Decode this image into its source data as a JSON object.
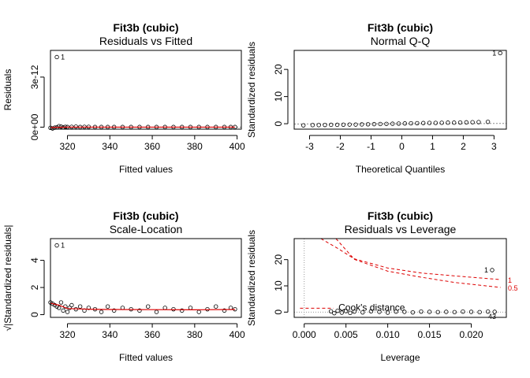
{
  "chart_data": [
    {
      "type": "scatter",
      "title": "Fit3b (cubic)",
      "subtitle": "Residuals vs Fitted",
      "xlabel": "Fitted values",
      "ylabel": "Residuals",
      "xlim": [
        312,
        402
      ],
      "ylim": [
        -1.2e-13,
        4.6e-12
      ],
      "xticks": [
        320,
        340,
        360,
        380,
        400
      ],
      "xtick_labels": [
        "320",
        "340",
        "360",
        "380",
        "400"
      ],
      "yticks": [
        0,
        3e-12
      ],
      "ytick_labels": [
        "0e+00",
        "3e-12"
      ],
      "reference_line": 0,
      "points_x": [
        312,
        313,
        314,
        315,
        316,
        317,
        318,
        319,
        320,
        322,
        324,
        326,
        328,
        330,
        333,
        336,
        339,
        342,
        346,
        350,
        354,
        358,
        362,
        366,
        370,
        374,
        378,
        382,
        386,
        390,
        394,
        397,
        399
      ],
      "points_y": [
        -4e-14,
        -8e-14,
        -3e-14,
        -1e-14,
        6e-14,
        3e-14,
        -2e-14,
        2e-14,
        1e-14,
        2e-14,
        3e-14,
        1e-14,
        2e-14,
        2e-14,
        1e-14,
        1e-14,
        1e-14,
        1e-14,
        1e-14,
        1e-14,
        1e-14,
        1e-14,
        1e-14,
        1e-14,
        1e-14,
        1e-14,
        1e-14,
        1e-14,
        1e-14,
        1e-14,
        1e-14,
        1e-14,
        1e-14
      ],
      "outlier": {
        "x": 315,
        "y": 4.2e-12,
        "label": "1"
      },
      "smooth_line": {
        "color": "#dd0000",
        "x": [
          312,
          320,
          340,
          360,
          380,
          399
        ],
        "y": [
          -2e-14,
          0,
          0,
          0,
          0,
          0
        ]
      }
    },
    {
      "type": "scatter",
      "title": "Fit3b (cubic)",
      "subtitle": "Normal Q-Q",
      "xlabel": "Theoretical Quantiles",
      "ylabel": "Standardized residuals",
      "xlim": [
        -3.5,
        3.4
      ],
      "ylim": [
        -2,
        27
      ],
      "xticks": [
        -3,
        -2,
        -1,
        0,
        1,
        2,
        3
      ],
      "xtick_labels": [
        "-3",
        "-2",
        "-1",
        "0",
        "1",
        "2",
        "3"
      ],
      "yticks": [
        0,
        10,
        20
      ],
      "ytick_labels": [
        "0",
        "10",
        "20"
      ],
      "reference_line": {
        "intercept": 0,
        "slope": 0.03
      },
      "points_x": [
        -3.2,
        -2.9,
        -2.7,
        -2.5,
        -2.3,
        -2.1,
        -1.9,
        -1.7,
        -1.5,
        -1.3,
        -1.1,
        -0.9,
        -0.7,
        -0.5,
        -0.3,
        -0.1,
        0.1,
        0.3,
        0.5,
        0.7,
        0.9,
        1.1,
        1.3,
        1.5,
        1.7,
        1.9,
        2.1,
        2.3,
        2.5,
        2.8
      ],
      "points_y": [
        -0.6,
        -0.5,
        -0.5,
        -0.45,
        -0.4,
        -0.4,
        -0.35,
        -0.3,
        -0.3,
        -0.25,
        -0.2,
        -0.15,
        -0.1,
        -0.05,
        0,
        0.05,
        0.1,
        0.15,
        0.2,
        0.25,
        0.3,
        0.3,
        0.35,
        0.4,
        0.4,
        0.45,
        0.5,
        0.55,
        0.6,
        0.7
      ],
      "outlier": {
        "x": 3.2,
        "y": 26,
        "label": "1"
      }
    },
    {
      "type": "scatter",
      "title": "Fit3b (cubic)",
      "subtitle": "Scale-Location",
      "xlabel": "Fitted values",
      "ylabel": "√|Standardized residuals|",
      "xlim": [
        312,
        402
      ],
      "ylim": [
        -0.2,
        5.6
      ],
      "xticks": [
        320,
        340,
        360,
        380,
        400
      ],
      "xtick_labels": [
        "320",
        "340",
        "360",
        "380",
        "400"
      ],
      "yticks": [
        0,
        2,
        4
      ],
      "ytick_labels": [
        "0",
        "2",
        "4"
      ],
      "points_x": [
        312,
        313,
        314,
        315,
        316,
        317,
        318,
        319,
        320,
        321,
        322,
        324,
        326,
        328,
        330,
        333,
        336,
        339,
        342,
        346,
        350,
        354,
        358,
        362,
        366,
        370,
        374,
        378,
        382,
        386,
        390,
        394,
        397,
        399
      ],
      "points_y": [
        0.9,
        0.8,
        0.7,
        0.6,
        0.5,
        0.9,
        0.3,
        0.6,
        0.2,
        0.5,
        0.7,
        0.4,
        0.6,
        0.3,
        0.5,
        0.4,
        0.2,
        0.6,
        0.3,
        0.5,
        0.4,
        0.3,
        0.6,
        0.2,
        0.5,
        0.4,
        0.3,
        0.5,
        0.2,
        0.4,
        0.6,
        0.3,
        0.5,
        0.4
      ],
      "outlier": {
        "x": 315,
        "y": 5.1,
        "label": "1"
      },
      "smooth_line": {
        "color": "#dd0000",
        "x": [
          312,
          316,
          320,
          330,
          340,
          360,
          380,
          399
        ],
        "y": [
          0.85,
          0.7,
          0.45,
          0.4,
          0.38,
          0.37,
          0.36,
          0.38
        ]
      }
    },
    {
      "type": "scatter",
      "title": "Fit3b (cubic)",
      "subtitle": "Residuals vs Leverage",
      "xlabel": "Leverage",
      "ylabel": "Standardized residuals",
      "xlim": [
        -0.0012,
        0.0242
      ],
      "ylim": [
        -2,
        28
      ],
      "xticks": [
        0,
        0.005,
        0.01,
        0.015,
        0.02
      ],
      "xtick_labels": [
        "0.000",
        "0.005",
        "0.010",
        "0.015",
        "0.020"
      ],
      "yticks": [
        0,
        10,
        20
      ],
      "ytick_labels": [
        "0",
        "10",
        "20"
      ],
      "points_x": [
        0.0032,
        0.0036,
        0.004,
        0.0045,
        0.005,
        0.0055,
        0.006,
        0.007,
        0.008,
        0.009,
        0.01,
        0.011,
        0.012,
        0.013,
        0.014,
        0.015,
        0.016,
        0.017,
        0.018,
        0.019,
        0.02,
        0.021,
        0.022,
        0.0228
      ],
      "points_y": [
        0.3,
        -0.4,
        0.5,
        -0.2,
        0.4,
        -0.3,
        0.2,
        -0.1,
        0.3,
        0.1,
        -0.2,
        0.2,
        0.1,
        -0.1,
        0.2,
        0.1,
        0,
        0.1,
        0,
        0.2,
        0.1,
        0,
        0.2,
        0.1
      ],
      "outlier": {
        "x": 0.0225,
        "y": 16,
        "label": "1"
      },
      "low_label": {
        "x": 0.0225,
        "y": -0.8,
        "label": "43"
      },
      "cooks_distance": {
        "legend": "Cook's distance",
        "color": "#dd0000",
        "contour_1": {
          "label": "1",
          "x": [
            0.002,
            0.004,
            0.006,
            0.01,
            0.014,
            0.018,
            0.0235
          ],
          "y": [
            28,
            24.3,
            20.3,
            16.8,
            14.9,
            13.8,
            12.4
          ]
        },
        "contour_05": {
          "label": "0.5",
          "x": [
            0.0038,
            0.006,
            0.01,
            0.014,
            0.018,
            0.0235
          ],
          "y": [
            28,
            20.1,
            15.6,
            13.3,
            11.3,
            9.4
          ]
        },
        "low_segment": {
          "x": [
            -0.0005,
            0.0035
          ],
          "y": [
            1.5,
            1.5
          ]
        }
      }
    }
  ]
}
